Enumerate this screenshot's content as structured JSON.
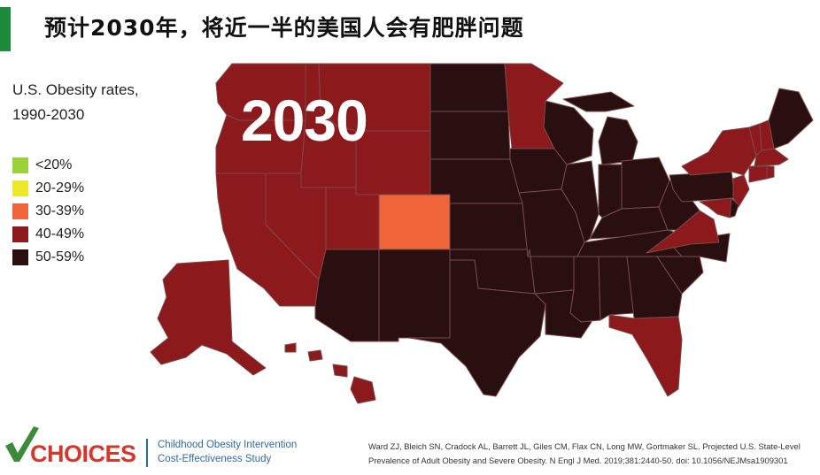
{
  "title": "预计2030年，将近一半的美国人会有肥胖问题",
  "map": {
    "legend_title": "U.S. Obesity rates,\n1990-2030",
    "year": "2030",
    "legend": [
      {
        "label": "<20%",
        "color": "#9bd23a"
      },
      {
        "label": "20-29%",
        "color": "#eee82a"
      },
      {
        "label": "30-39%",
        "color": "#f0643a"
      },
      {
        "label": "40-49%",
        "color": "#8c1a1d"
      },
      {
        "label": "50-59%",
        "color": "#2a0f10"
      }
    ],
    "colors": {
      "dark": "#2a0f10",
      "red": "#8c1a1d",
      "orange": "#f0643a",
      "border": "#7a4a4a"
    },
    "states": {
      "Washington": "40-49%",
      "Oregon": "40-49%",
      "California": "40-49%",
      "Nevada": "40-49%",
      "Idaho": "40-49%",
      "Montana": "40-49%",
      "Wyoming": "40-49%",
      "Utah": "40-49%",
      "Colorado": "30-39%",
      "Arizona": "50-59%",
      "New Mexico": "50-59%",
      "North Dakota": "50-59%",
      "South Dakota": "50-59%",
      "Nebraska": "50-59%",
      "Kansas": "50-59%",
      "Oklahoma": "50-59%",
      "Texas": "50-59%",
      "Minnesota": "40-49%",
      "Iowa": "50-59%",
      "Missouri": "50-59%",
      "Arkansas": "50-59%",
      "Louisiana": "50-59%",
      "Wisconsin": "50-59%",
      "Illinois": "50-59%",
      "Michigan": "50-59%",
      "Indiana": "50-59%",
      "Ohio": "50-59%",
      "Kentucky": "50-59%",
      "Tennessee": "50-59%",
      "Mississippi": "50-59%",
      "Alabama": "50-59%",
      "Georgia": "50-59%",
      "Florida": "40-49%",
      "South Carolina": "50-59%",
      "North Carolina": "50-59%",
      "Virginia": "40-49%",
      "West Virginia": "50-59%",
      "Pennsylvania": "50-59%",
      "New York": "40-49%",
      "New Jersey": "40-49%",
      "Maryland": "40-49%",
      "Delaware": "50-59%",
      "Vermont": "40-49%",
      "New Hampshire": "40-49%",
      "Massachusetts": "40-49%",
      "Connecticut": "40-49%",
      "Rhode Island": "40-49%",
      "Maine": "50-59%",
      "Alaska": "40-49%",
      "Hawaii": "40-49%"
    }
  },
  "footer": {
    "logo_text": "CHOICES",
    "logo_sub_line1": "Childhood Obesity Intervention",
    "logo_sub_line2": "Cost-Effectiveness Study",
    "citation_line1": "Ward ZJ, Bleich SN, Cradock AL, Barrett JL, Giles CM, Flax CN, Long MW, Gortmaker SL. Projected U.S. State-Level",
    "citation_line2": "Prevalence of Adult Obesity and Severe Obesity. N Engl J Med. 2019;381:2440-50. doi: 10.1056/NEJMsa1909301"
  }
}
